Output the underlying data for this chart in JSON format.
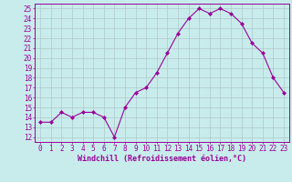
{
  "x": [
    0,
    1,
    2,
    3,
    4,
    5,
    6,
    7,
    8,
    9,
    10,
    11,
    12,
    13,
    14,
    15,
    16,
    17,
    18,
    19,
    20,
    21,
    22,
    23
  ],
  "y": [
    13.5,
    13.5,
    14.5,
    14.0,
    14.5,
    14.5,
    14.0,
    12.0,
    15.0,
    16.5,
    17.0,
    18.5,
    20.5,
    22.5,
    24.0,
    25.0,
    24.5,
    25.0,
    24.5,
    23.5,
    21.5,
    20.5,
    18.0,
    16.5
  ],
  "line_color": "#990099",
  "marker": "D",
  "marker_size": 2,
  "bg_color": "#c8ecec",
  "grid_color": "#b0c8c8",
  "xlabel": "Windchill (Refroidissement éolien,°C)",
  "ylabel_ticks": [
    12,
    13,
    14,
    15,
    16,
    17,
    18,
    19,
    20,
    21,
    22,
    23,
    24,
    25
  ],
  "xlim": [
    -0.5,
    23.5
  ],
  "ylim": [
    11.5,
    25.5
  ],
  "font_color": "#990099",
  "font_size": 5.5,
  "xlabel_fontsize": 6.0
}
